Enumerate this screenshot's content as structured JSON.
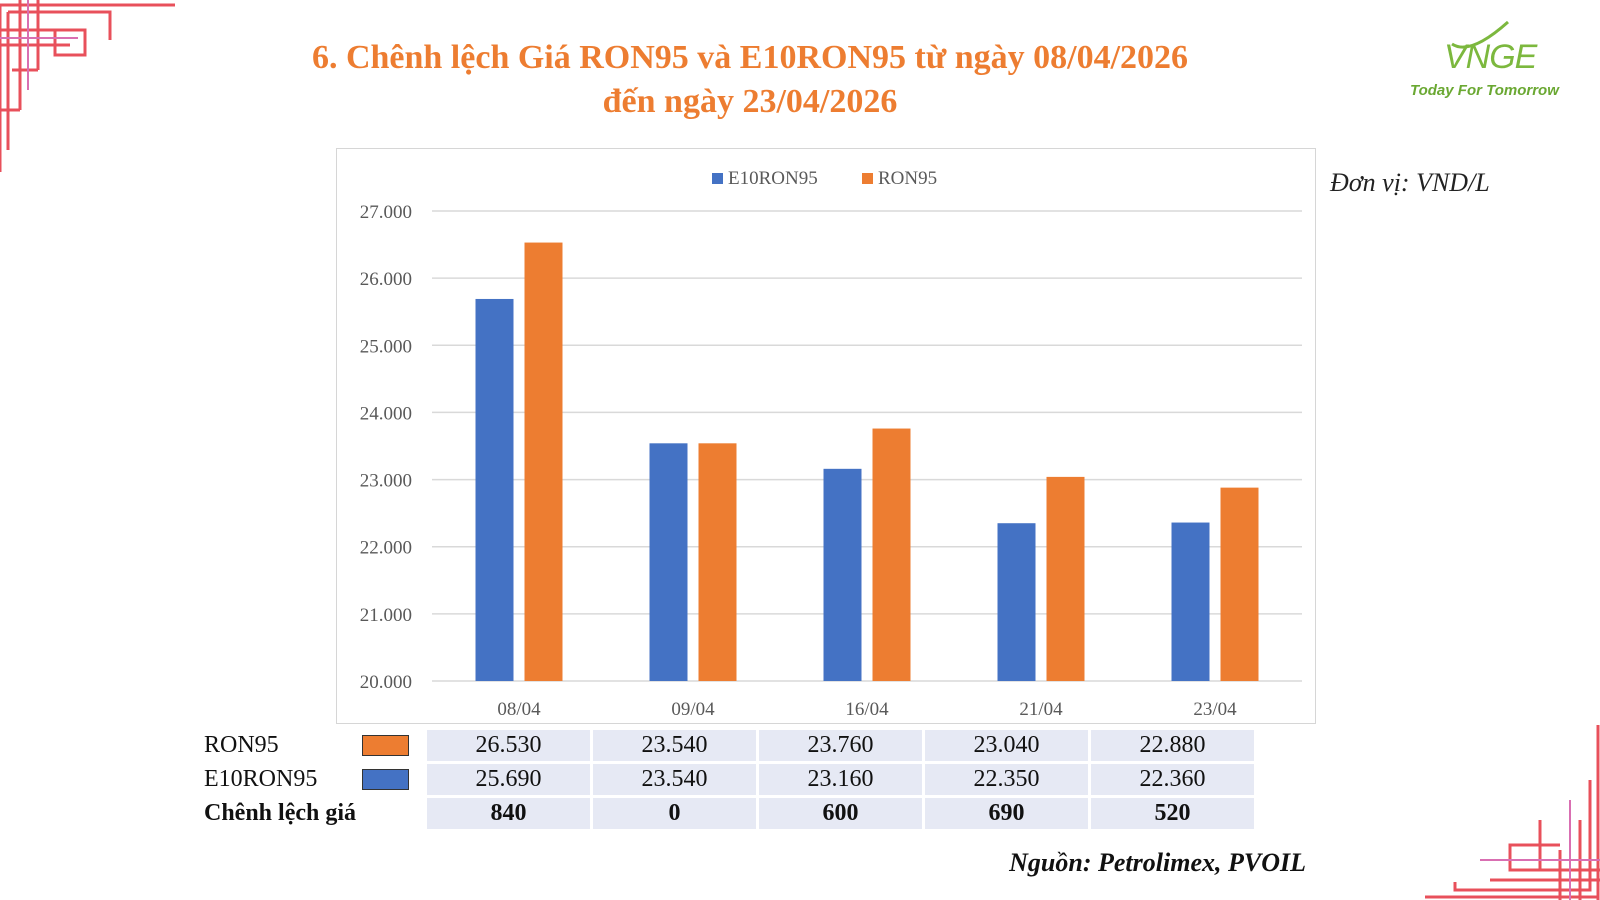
{
  "title": {
    "line1": "6. Chênh lệch Giá RON95 và E10RON95 từ ngày 08/04/2026",
    "line2": "đến ngày 23/04/2026"
  },
  "logo": {
    "mark": "VNGE",
    "tagline": "Today For Tomorrow",
    "color": "#7cb83e"
  },
  "unit_label": "Đơn vị: VND/L",
  "source_label": "Nguồn: Petrolimex, PVOIL",
  "colors": {
    "e10": "#4472c4",
    "ron95": "#ed7d31",
    "title": "#ed7d31",
    "frame": "#e8505b"
  },
  "chart_data": {
    "type": "bar",
    "categories": [
      "08/04",
      "09/04",
      "16/04",
      "21/04",
      "23/04"
    ],
    "series": [
      {
        "name": "E10RON95",
        "color": "#4472c4",
        "values": [
          25690,
          23540,
          23160,
          22350,
          22360
        ]
      },
      {
        "name": "RON95",
        "color": "#ed7d31",
        "values": [
          26530,
          23540,
          23760,
          23040,
          22880
        ]
      }
    ],
    "ylim": [
      20000,
      27000
    ],
    "yticks": [
      "20.000",
      "21.000",
      "22.000",
      "23.000",
      "24.000",
      "25.000",
      "26.000",
      "27.000"
    ],
    "legend_position": "top",
    "grid": true
  },
  "table": {
    "rows": [
      {
        "label": "RON95",
        "swatch": "#ed7d31",
        "values": [
          "26.530",
          "23.540",
          "23.760",
          "23.040",
          "22.880"
        ]
      },
      {
        "label": "E10RON95",
        "swatch": "#4472c4",
        "values": [
          "25.690",
          "23.540",
          "23.160",
          "22.350",
          "22.360"
        ]
      },
      {
        "label": "Chênh lệch giá",
        "values": [
          "840",
          "0",
          "600",
          "690",
          "520"
        ]
      }
    ]
  }
}
